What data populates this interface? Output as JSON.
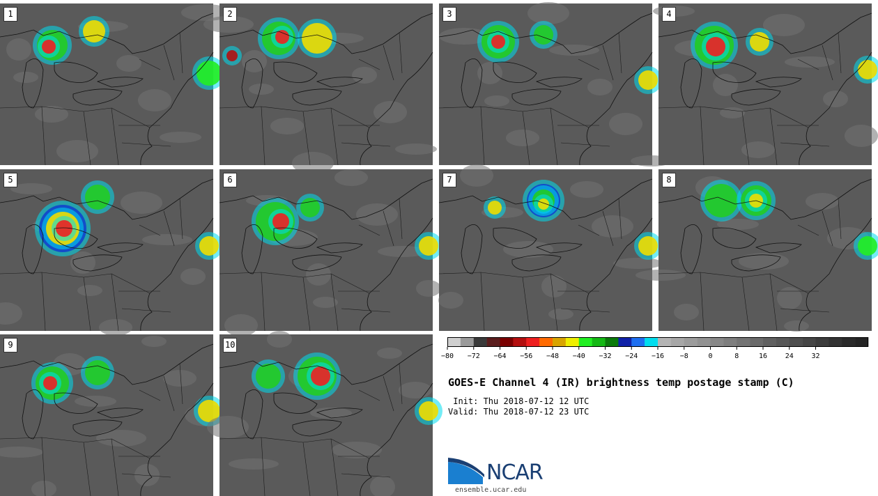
{
  "panels": [
    {
      "label": "1"
    },
    {
      "label": "2"
    },
    {
      "label": "3"
    },
    {
      "label": "4"
    },
    {
      "label": "5"
    },
    {
      "label": "6"
    },
    {
      "label": "7"
    },
    {
      "label": "8"
    },
    {
      "label": "9"
    },
    {
      "label": "10"
    }
  ],
  "colorbar": {
    "colors": [
      "#cfcfcf",
      "#9a9a9a",
      "#3a3a3a",
      "#5a1d1d",
      "#7a0000",
      "#b30f0f",
      "#ee2020",
      "#ff6a00",
      "#d9a400",
      "#eeee00",
      "#22ee22",
      "#14b814",
      "#0a7a0a",
      "#1022a8",
      "#1e6ff0",
      "#00ddee",
      "#b4b4b4",
      "#a7a7a7",
      "#9c9c9c",
      "#929292",
      "#888888",
      "#7e7e7e",
      "#747474",
      "#6a6a6a",
      "#606060",
      "#575757",
      "#4e4e4e",
      "#454545",
      "#3c3c3c",
      "#333333",
      "#2a2a2a",
      "#242424"
    ],
    "ticks": [
      "−80",
      "−72",
      "−64",
      "−56",
      "−48",
      "−40",
      "−32",
      "−24",
      "−16",
      "−8",
      "0",
      "8",
      "16",
      "24",
      "32"
    ]
  },
  "title": "GOES-E Channel 4 (IR) brightness temp postage stamp (C)",
  "init_line": " Init: Thu 2018-07-12 12 UTC",
  "valid_line": "Valid: Thu 2018-07-12 23 UTC",
  "logo_text": "NCAR",
  "url": "ensemble.ucar.edu",
  "colors": {
    "cold_red": "#cc1111",
    "warm_yellow": "#eedd00",
    "green": "#22cc22",
    "blue": "#1144cc",
    "cyan": "#00ddee"
  }
}
